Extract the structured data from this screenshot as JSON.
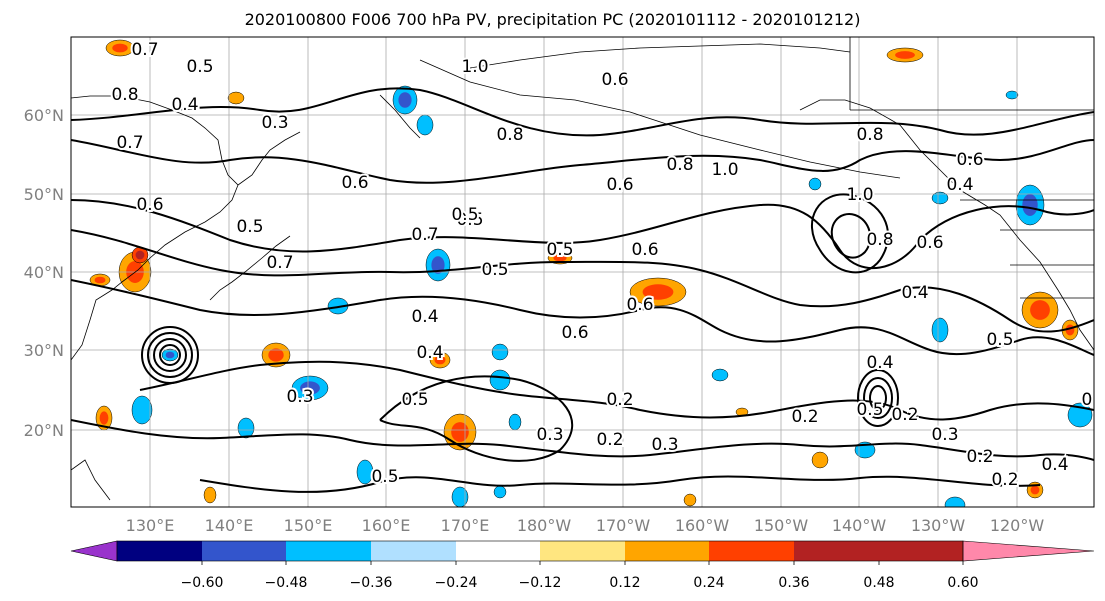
{
  "title": "2020100800 F006 700 hPa PV, precipitation PC (2020101112 - 2020101212)",
  "lat_labels": [
    "20°N",
    "30°N",
    "40°N",
    "50°N",
    "60°N"
  ],
  "lon_labels": [
    "130°E",
    "140°E",
    "150°E",
    "160°E",
    "170°E",
    "180°W",
    "170°W",
    "160°W",
    "150°W",
    "140°W",
    "130°W",
    "120°W"
  ],
  "colorbar": {
    "colors": [
      "#9933cc",
      "#000080",
      "#3355cc",
      "#00bfff",
      "#b0e0ff",
      "#ffffff",
      "#ffe680",
      "#ffa500",
      "#ff4000",
      "#b22222",
      "#ff88aa"
    ],
    "ticks": [
      "−0.60",
      "−0.48",
      "−0.36",
      "−0.24",
      "−0.12",
      "0.12",
      "0.24",
      "0.36",
      "0.48",
      "0.60"
    ]
  },
  "contour_labels": [
    "0.7",
    "0.5",
    "0.8",
    "0.4",
    "0.3",
    "0.7",
    "0.6",
    "0.5",
    "0.6",
    "0.7",
    "0.5",
    "1.0",
    "0.8",
    "0.6",
    "0.8",
    "1.0",
    "0.6",
    "0.8",
    "0.5",
    "0.6",
    "0.5",
    "0.4",
    "0.3",
    "0.4",
    "0.5",
    "0.6",
    "0.6",
    "0.5",
    "0.3",
    "0.2",
    "0.2",
    "0.3",
    "0.2",
    "0.4",
    "0.5",
    "0.2",
    "0.4",
    "0.6",
    "0.4",
    "0.5",
    "0.2",
    "0.3",
    "0.2",
    "0.4",
    "0.2",
    "0.7",
    "0.5",
    "1.0",
    "0.8",
    "0.6"
  ]
}
